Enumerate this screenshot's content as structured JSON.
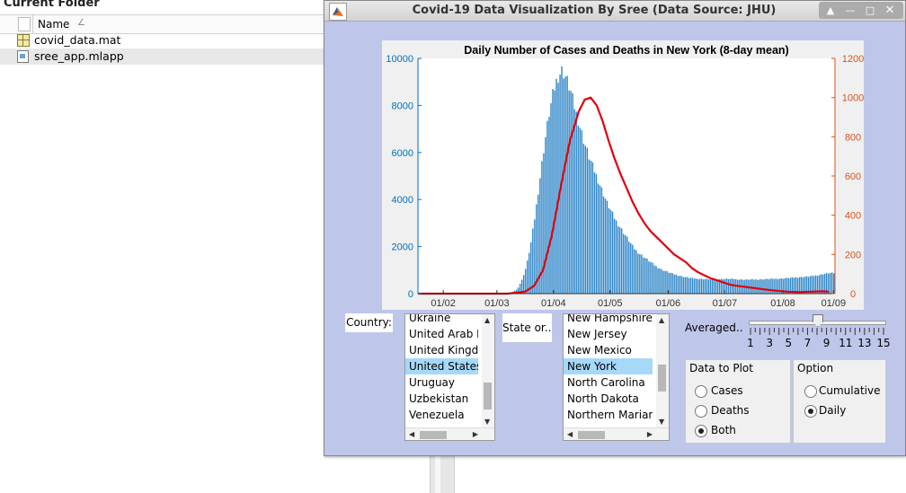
{
  "folder": {
    "title": "Current Folder",
    "column_name": "Name",
    "sort_indicator": "∠",
    "files": [
      {
        "name": "covid_data.mat",
        "icon": "mat-file-icon"
      },
      {
        "name": "sree_app.mlapp",
        "icon": "mlapp-file-icon"
      }
    ]
  },
  "window": {
    "title": "Covid-19 Data Visualization By Sree (Data Source: JHU)",
    "controls": {
      "up": "▲",
      "minimize": "—",
      "maximize": "□",
      "close": "✕"
    }
  },
  "chart_data": {
    "type": "bar",
    "title": "Daily Number of Cases and Deaths in New York (8-day mean)",
    "x_ticks": [
      "01/02",
      "01/03",
      "01/04",
      "01/05",
      "01/06",
      "01/07",
      "01/08",
      "01/09"
    ],
    "y_left": {
      "range": [
        0,
        10000
      ],
      "ticks": [
        "0",
        "2000",
        "4000",
        "6000",
        "8000",
        "10000"
      ],
      "color": "#0072bd"
    },
    "y_right": {
      "range": [
        0,
        1200
      ],
      "ticks": [
        "0",
        "200",
        "400",
        "600",
        "800",
        "1000",
        "1200"
      ],
      "color": "#d95319"
    },
    "series": [
      {
        "type": "bar",
        "axis": "left",
        "color": "#2f86c8",
        "points": [
          [
            0.0,
            0
          ],
          [
            0.08,
            0
          ],
          [
            0.15,
            0
          ],
          [
            0.22,
            0
          ],
          [
            0.28,
            0
          ],
          [
            0.31,
            0
          ],
          [
            0.335,
            200
          ],
          [
            0.35,
            600
          ],
          [
            0.365,
            1200
          ],
          [
            0.38,
            2200
          ],
          [
            0.395,
            3500
          ],
          [
            0.41,
            5000
          ],
          [
            0.425,
            6500
          ],
          [
            0.44,
            7800
          ],
          [
            0.455,
            8800
          ],
          [
            0.47,
            9500
          ],
          [
            0.485,
            9800
          ],
          [
            0.5,
            9400
          ],
          [
            0.515,
            8800
          ],
          [
            0.53,
            8000
          ],
          [
            0.545,
            7300
          ],
          [
            0.56,
            6600
          ],
          [
            0.575,
            6000
          ],
          [
            0.59,
            5500
          ],
          [
            0.605,
            5000
          ],
          [
            0.62,
            4500
          ],
          [
            0.635,
            4000
          ],
          [
            0.65,
            3600
          ],
          [
            0.665,
            3200
          ],
          [
            0.68,
            2900
          ],
          [
            0.695,
            2600
          ],
          [
            0.71,
            2300
          ],
          [
            0.725,
            2000
          ],
          [
            0.74,
            1800
          ],
          [
            0.76,
            1600
          ],
          [
            0.78,
            1400
          ],
          [
            0.8,
            1200
          ],
          [
            0.82,
            1050
          ],
          [
            0.84,
            950
          ],
          [
            0.86,
            850
          ],
          [
            0.88,
            780
          ],
          [
            0.9,
            720
          ],
          [
            0.92,
            680
          ],
          [
            0.94,
            650
          ],
          [
            0.96,
            640
          ],
          [
            0.98,
            630
          ],
          [
            1.0,
            630
          ],
          [
            1.02,
            640
          ],
          [
            1.04,
            650
          ],
          [
            1.06,
            640
          ],
          [
            1.08,
            620
          ],
          [
            1.1,
            610
          ],
          [
            1.12,
            620
          ],
          [
            1.14,
            620
          ],
          [
            1.16,
            630
          ],
          [
            1.18,
            640
          ],
          [
            1.2,
            650
          ],
          [
            1.22,
            660
          ],
          [
            1.24,
            680
          ],
          [
            1.26,
            700
          ],
          [
            1.28,
            720
          ],
          [
            1.3,
            740
          ],
          [
            1.32,
            760
          ],
          [
            1.34,
            800
          ],
          [
            1.36,
            850
          ],
          [
            1.38,
            900
          ]
        ]
      },
      {
        "type": "line",
        "axis": "right",
        "color": "#e0000c",
        "points": [
          [
            0.0,
            0
          ],
          [
            0.08,
            0
          ],
          [
            0.15,
            0
          ],
          [
            0.22,
            0
          ],
          [
            0.3,
            0
          ],
          [
            0.36,
            10
          ],
          [
            0.39,
            40
          ],
          [
            0.42,
            120
          ],
          [
            0.45,
            300
          ],
          [
            0.48,
            550
          ],
          [
            0.51,
            780
          ],
          [
            0.54,
            930
          ],
          [
            0.56,
            990
          ],
          [
            0.58,
            1000
          ],
          [
            0.6,
            960
          ],
          [
            0.62,
            880
          ],
          [
            0.64,
            780
          ],
          [
            0.66,
            690
          ],
          [
            0.68,
            610
          ],
          [
            0.7,
            540
          ],
          [
            0.72,
            470
          ],
          [
            0.74,
            410
          ],
          [
            0.76,
            360
          ],
          [
            0.78,
            320
          ],
          [
            0.8,
            290
          ],
          [
            0.82,
            260
          ],
          [
            0.84,
            230
          ],
          [
            0.86,
            200
          ],
          [
            0.88,
            180
          ],
          [
            0.9,
            160
          ],
          [
            0.92,
            130
          ],
          [
            0.94,
            110
          ],
          [
            0.96,
            95
          ],
          [
            0.98,
            80
          ],
          [
            1.0,
            70
          ],
          [
            1.02,
            60
          ],
          [
            1.05,
            45
          ],
          [
            1.08,
            38
          ],
          [
            1.12,
            30
          ],
          [
            1.16,
            22
          ],
          [
            1.2,
            15
          ],
          [
            1.24,
            10
          ],
          [
            1.28,
            8
          ],
          [
            1.32,
            10
          ],
          [
            1.36,
            12
          ],
          [
            1.38,
            10
          ]
        ]
      }
    ]
  },
  "controls": {
    "country_label": "Country:",
    "state_label": "State or...",
    "countries": [
      {
        "label": "Ukraine",
        "selected": false
      },
      {
        "label": "United Arab Er",
        "selected": false
      },
      {
        "label": "United Kingdor",
        "selected": false
      },
      {
        "label": "United States",
        "selected": true
      },
      {
        "label": "Uruguay",
        "selected": false
      },
      {
        "label": "Uzbekistan",
        "selected": false
      },
      {
        "label": "Venezuela",
        "selected": false
      }
    ],
    "states": [
      {
        "label": "New Hampshire",
        "selected": false
      },
      {
        "label": "New Jersey",
        "selected": false
      },
      {
        "label": "New Mexico",
        "selected": false
      },
      {
        "label": "New York",
        "selected": true
      },
      {
        "label": "North Carolina",
        "selected": false
      },
      {
        "label": "North Dakota",
        "selected": false
      },
      {
        "label": "Northern Mariana",
        "selected": false
      }
    ],
    "averaged_label": "Averaged..",
    "slider": {
      "min": 1,
      "max": 15,
      "value": 8,
      "tick_labels": [
        "1",
        "3",
        "5",
        "7",
        "9",
        "11",
        "13",
        "15"
      ]
    },
    "data_group": {
      "title": "Data to Plot",
      "options": [
        {
          "label": "Cases",
          "selected": false
        },
        {
          "label": "Deaths",
          "selected": false
        },
        {
          "label": "Both",
          "selected": true
        }
      ]
    },
    "option_group": {
      "title": "Option",
      "options": [
        {
          "label": "Cumulative",
          "selected": false
        },
        {
          "label": "Daily",
          "selected": true
        }
      ]
    }
  }
}
